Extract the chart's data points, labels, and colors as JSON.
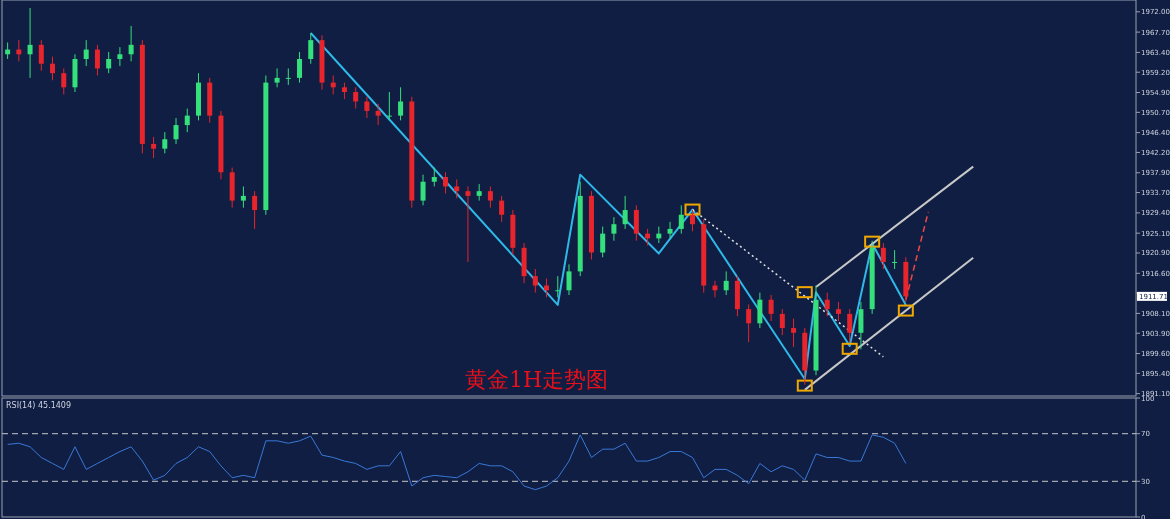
{
  "chart_data": [
    {
      "type": "candlestick",
      "tick_labels": "y",
      "annotations": [
        "黄金1H走势图",
        {
          "text": "1911.71",
          "y": 1911.71
        }
      ],
      "categories": [
        null,
        null,
        null,
        null,
        null,
        null,
        null,
        null,
        null,
        null,
        null,
        null,
        null,
        null,
        null,
        null,
        null,
        null,
        null,
        null,
        null,
        null,
        null,
        null,
        null,
        null,
        null,
        null,
        null,
        null,
        null,
        null,
        null,
        null,
        null,
        null,
        null,
        null,
        null,
        null,
        null,
        null,
        null,
        null,
        null,
        null,
        null,
        null,
        null,
        null,
        null,
        null,
        null,
        null,
        null,
        null,
        null,
        null,
        null,
        null,
        null,
        null,
        null,
        null,
        null,
        null,
        null,
        null,
        null,
        null,
        null,
        null,
        null,
        null,
        null,
        null,
        null,
        null,
        null,
        null,
        null,
        null,
        null,
        null,
        null,
        null,
        null,
        null,
        null,
        null,
        null,
        null,
        null,
        null,
        null,
        null,
        null,
        null,
        null,
        null,
        null
      ],
      "ohlc": [
        [
          1963,
          1965.5,
          1962,
          1964
        ],
        [
          1964,
          1966,
          1961.5,
          1963
        ],
        [
          1963,
          1972.8,
          1958,
          1965
        ],
        [
          1965,
          1966,
          1959.5,
          1961
        ],
        [
          1961,
          1962.5,
          1957.5,
          1959
        ],
        [
          1959,
          1960,
          1954.5,
          1956
        ],
        [
          1956,
          1963,
          1955,
          1962
        ],
        [
          1962,
          1966,
          1960.5,
          1964
        ],
        [
          1964,
          1965,
          1958.5,
          1960
        ],
        [
          1960,
          1963.5,
          1959,
          1962
        ],
        [
          1962,
          1964.5,
          1960.5,
          1963
        ],
        [
          1963,
          1969,
          1961.5,
          1965
        ],
        [
          1965,
          1966,
          1942,
          1944
        ],
        [
          1944,
          1945.5,
          1941,
          1943
        ],
        [
          1943,
          1946.5,
          1942,
          1945
        ],
        [
          1945,
          1949.5,
          1944,
          1948
        ],
        [
          1948,
          1951.5,
          1946.5,
          1950
        ],
        [
          1950,
          1959,
          1949,
          1957
        ],
        [
          1957,
          1958,
          1948.5,
          1950
        ],
        [
          1950,
          1951,
          1936.5,
          1938
        ],
        [
          1938,
          1939,
          1930.5,
          1932
        ],
        [
          1932,
          1935,
          1930.5,
          1933
        ],
        [
          1933,
          1934,
          1926,
          1930
        ],
        [
          1930,
          1958.5,
          1929,
          1957
        ],
        [
          1957,
          1960,
          1956,
          1958
        ],
        [
          1958,
          1960,
          1956.5,
          1958
        ],
        [
          1958,
          1963.5,
          1957,
          1962
        ],
        [
          1962,
          1967.5,
          1961,
          1966
        ],
        [
          1966,
          1967,
          1955.5,
          1957
        ],
        [
          1957,
          1958.5,
          1954.5,
          1956
        ],
        [
          1956,
          1957,
          1953.5,
          1955
        ],
        [
          1955,
          1956,
          1951.5,
          1953
        ],
        [
          1953,
          1954,
          1949.5,
          1951
        ],
        [
          1951,
          1952.5,
          1948,
          1950
        ],
        [
          1950,
          1955,
          1949,
          1950
        ],
        [
          1950,
          1956,
          1949,
          1953
        ],
        [
          1953,
          1954,
          1930.5,
          1932
        ],
        [
          1932,
          1937.5,
          1931,
          1936
        ],
        [
          1936,
          1939,
          1935,
          1937
        ],
        [
          1937,
          1938,
          1933.5,
          1935
        ],
        [
          1935,
          1936.5,
          1932.5,
          1934
        ],
        [
          1934,
          1935,
          1919,
          1933
        ],
        [
          1933,
          1935.5,
          1932,
          1934
        ],
        [
          1934,
          1935,
          1930.5,
          1932
        ],
        [
          1932,
          1933,
          1927.5,
          1929
        ],
        [
          1929,
          1930,
          1920.5,
          1922
        ],
        [
          1922,
          1923,
          1914.5,
          1916
        ],
        [
          1916,
          1917.5,
          1912.5,
          1914
        ],
        [
          1914,
          1915.5,
          1911.5,
          1913
        ],
        [
          1913,
          1916,
          1911.5,
          1913
        ],
        [
          1913,
          1918.5,
          1912,
          1917
        ],
        [
          1917,
          1936,
          1916,
          1933
        ],
        [
          1933,
          1934,
          1919.5,
          1921
        ],
        [
          1921,
          1926.5,
          1920,
          1925
        ],
        [
          1925,
          1928.5,
          1923.5,
          1927
        ],
        [
          1927,
          1933,
          1926,
          1930
        ],
        [
          1930,
          1931,
          1923.5,
          1925
        ],
        [
          1925,
          1926,
          1922.5,
          1924
        ],
        [
          1924,
          1926.5,
          1923,
          1925
        ],
        [
          1925,
          1927.5,
          1924,
          1926
        ],
        [
          1926,
          1931,
          1925,
          1929
        ],
        [
          1929,
          1930,
          1925.5,
          1927
        ],
        [
          1927,
          1928,
          1912.5,
          1914
        ],
        [
          1914,
          1915,
          1911.5,
          1913
        ],
        [
          1913,
          1917,
          1912,
          1915
        ],
        [
          1915,
          1916,
          1907.5,
          1909
        ],
        [
          1909,
          1910,
          1902,
          1906
        ],
        [
          1906,
          1912.5,
          1905,
          1911
        ],
        [
          1911,
          1912,
          1906.5,
          1908
        ],
        [
          1908,
          1909,
          1903.5,
          1905
        ],
        [
          1905,
          1907,
          1901,
          1904
        ],
        [
          1904,
          1905,
          1893,
          1896
        ],
        [
          1896,
          1914,
          1895,
          1911
        ],
        [
          1911,
          1912.5,
          1907.5,
          1909
        ],
        [
          1909,
          1910.5,
          1906.5,
          1908
        ],
        [
          1908,
          1909,
          1902,
          1904
        ],
        [
          1904,
          1910.5,
          1900.5,
          1909
        ],
        [
          1909,
          1923.5,
          1908,
          1922
        ],
        [
          1922,
          1923,
          1917.5,
          1919
        ],
        [
          1919,
          1921.5,
          1917.5,
          1919
        ],
        [
          1919,
          1920,
          1910.5,
          1911.71
        ],
        null,
        null,
        null,
        null,
        null,
        null,
        null,
        null,
        null,
        null,
        null,
        null,
        null,
        null,
        null,
        null,
        null,
        null,
        null,
        null
      ],
      "ylim": [
        1890.6,
        1974.5
      ],
      "yticks": [
        {
          "value": 1972,
          "label": "1972.00"
        },
        {
          "value": 1967.7,
          "label": "1967.70"
        },
        {
          "value": 1963.4,
          "label": "1963.40"
        },
        {
          "value": 1959.2,
          "label": "1959.20"
        },
        {
          "value": 1954.9,
          "label": "1954.90"
        },
        {
          "value": 1950.7,
          "label": "1950.70"
        },
        {
          "value": 1946.4,
          "label": "1946.40"
        },
        {
          "value": 1942.2,
          "label": "1942.20"
        },
        {
          "value": 1937.9,
          "label": "1937.90"
        },
        {
          "value": 1933.7,
          "label": "1933.70"
        },
        {
          "value": 1929.4,
          "label": "1929.40"
        },
        {
          "value": 1925.1,
          "label": "1925.10"
        },
        {
          "value": 1920.9,
          "label": "1920.90"
        },
        {
          "value": 1916.6,
          "label": "1916.60"
        },
        {
          "value": 1912.4,
          "label": null
        },
        {
          "value": 1908.1,
          "label": "1908.10"
        },
        {
          "value": 1903.9,
          "label": "1903.90"
        },
        {
          "value": 1899.6,
          "label": "1899.60"
        },
        {
          "value": 1895.4,
          "label": "1895.40"
        },
        {
          "value": 1891.1,
          "label": "1891.10"
        }
      ],
      "series": [
        {
          "type": "line",
          "color": "#2fb8e8",
          "values": [
            null,
            null,
            null,
            null,
            null,
            null,
            null,
            null,
            null,
            null,
            null,
            null,
            null,
            null,
            null,
            null,
            null,
            null,
            null,
            null,
            null,
            null,
            null,
            null,
            null,
            null,
            null,
            1967.5,
            null,
            null,
            null,
            null,
            null,
            null,
            null,
            null,
            null,
            null,
            null,
            null,
            null,
            null,
            null,
            null,
            null,
            null,
            null,
            null,
            null,
            1909.9,
            null,
            1937.5,
            null,
            null,
            null,
            null,
            null,
            null,
            1920.8,
            null,
            null,
            1930.1,
            null,
            null,
            null,
            null,
            null,
            null,
            null,
            null,
            null,
            1894.2,
            1912.6,
            null,
            null,
            1901.2,
            null,
            1922.9,
            null,
            null,
            1909.9,
            null,
            null,
            null,
            null,
            null,
            null,
            null,
            null,
            null,
            null,
            null,
            null,
            null,
            null,
            null,
            null,
            null,
            null,
            null,
            null
          ]
        },
        {
          "type": "line",
          "color": "#c8c8c8",
          "values": [
            null,
            null,
            null,
            null,
            null,
            null,
            null,
            null,
            null,
            null,
            null,
            null,
            null,
            null,
            null,
            null,
            null,
            null,
            null,
            null,
            null,
            null,
            null,
            null,
            null,
            null,
            null,
            null,
            null,
            null,
            null,
            null,
            null,
            null,
            null,
            null,
            null,
            null,
            null,
            null,
            null,
            null,
            null,
            null,
            null,
            null,
            null,
            null,
            null,
            null,
            null,
            null,
            null,
            null,
            null,
            null,
            null,
            null,
            null,
            null,
            null,
            null,
            null,
            null,
            null,
            null,
            null,
            null,
            null,
            null,
            null,
            null,
            1913.7,
            null,
            null,
            null,
            null,
            null,
            null,
            null,
            null,
            null,
            null,
            null,
            null,
            null,
            1939.2,
            null,
            null,
            null,
            null,
            null,
            null,
            null,
            null,
            null,
            null,
            null,
            null,
            null,
            null
          ]
        },
        {
          "type": "line",
          "color": "#c8c8c8",
          "values": [
            null,
            null,
            null,
            null,
            null,
            null,
            null,
            null,
            null,
            null,
            null,
            null,
            null,
            null,
            null,
            null,
            null,
            null,
            null,
            null,
            null,
            null,
            null,
            null,
            null,
            null,
            null,
            null,
            null,
            null,
            null,
            null,
            null,
            null,
            null,
            null,
            null,
            null,
            null,
            null,
            null,
            null,
            null,
            null,
            null,
            null,
            null,
            null,
            null,
            null,
            null,
            null,
            null,
            null,
            null,
            null,
            null,
            null,
            null,
            null,
            null,
            null,
            null,
            null,
            null,
            null,
            null,
            null,
            null,
            null,
            null,
            1891.9,
            null,
            null,
            null,
            null,
            null,
            null,
            null,
            null,
            null,
            null,
            null,
            null,
            null,
            null,
            1919.9,
            null,
            null,
            null,
            null,
            null,
            null,
            null,
            null,
            null,
            null,
            null,
            null,
            null,
            null
          ]
        },
        {
          "type": "line",
          "color": "#e0e0e0",
          "line_style": "dotted",
          "values": [
            null,
            null,
            null,
            null,
            null,
            null,
            null,
            null,
            null,
            null,
            null,
            null,
            null,
            null,
            null,
            null,
            null,
            null,
            null,
            null,
            null,
            null,
            null,
            null,
            null,
            null,
            null,
            null,
            null,
            null,
            null,
            null,
            null,
            null,
            null,
            null,
            null,
            null,
            null,
            null,
            null,
            null,
            null,
            null,
            null,
            null,
            null,
            null,
            null,
            null,
            null,
            null,
            null,
            null,
            null,
            null,
            null,
            null,
            null,
            null,
            null,
            1930.1,
            null,
            null,
            null,
            null,
            null,
            null,
            null,
            null,
            null,
            null,
            null,
            null,
            null,
            null,
            null,
            null,
            1898.9,
            null,
            null,
            null,
            null,
            null,
            null,
            null,
            null,
            null,
            null,
            null,
            null,
            null,
            null,
            null,
            null,
            null,
            null,
            null,
            null,
            null,
            null
          ]
        },
        {
          "type": "scatter",
          "color": "#f0a800",
          "marker": "square",
          "values": [
            null,
            null,
            null,
            null,
            null,
            null,
            null,
            null,
            null,
            null,
            null,
            null,
            null,
            null,
            null,
            null,
            null,
            null,
            null,
            null,
            null,
            null,
            null,
            null,
            null,
            null,
            null,
            null,
            null,
            null,
            null,
            null,
            null,
            null,
            null,
            null,
            null,
            null,
            null,
            null,
            null,
            null,
            null,
            null,
            null,
            null,
            null,
            null,
            null,
            null,
            null,
            null,
            null,
            null,
            null,
            null,
            null,
            null,
            null,
            null,
            null,
            1930.1,
            null,
            null,
            null,
            null,
            null,
            null,
            null,
            null,
            null,
            1912.6,
            null,
            null,
            null,
            null,
            null,
            1923.3,
            null,
            null,
            null,
            null,
            null,
            null,
            null,
            null,
            null,
            null,
            null,
            null,
            null,
            null,
            null,
            null,
            null,
            null,
            null,
            null,
            null,
            null,
            null
          ]
        },
        {
          "type": "scatter",
          "color": "#f0a800",
          "marker": "square",
          "values": [
            null,
            null,
            null,
            null,
            null,
            null,
            null,
            null,
            null,
            null,
            null,
            null,
            null,
            null,
            null,
            null,
            null,
            null,
            null,
            null,
            null,
            null,
            null,
            null,
            null,
            null,
            null,
            null,
            null,
            null,
            null,
            null,
            null,
            null,
            null,
            null,
            null,
            null,
            null,
            null,
            null,
            null,
            null,
            null,
            null,
            null,
            null,
            null,
            null,
            null,
            null,
            null,
            null,
            null,
            null,
            null,
            null,
            null,
            null,
            null,
            null,
            null,
            null,
            null,
            null,
            null,
            null,
            null,
            null,
            null,
            null,
            1892.8,
            null,
            null,
            null,
            1900.6,
            null,
            null,
            null,
            null,
            1908.7,
            null,
            null,
            null,
            null,
            null,
            null,
            null,
            null,
            null,
            null,
            null,
            null,
            null,
            null,
            null,
            null,
            null,
            null,
            null,
            null
          ]
        },
        {
          "type": "line",
          "color": "#f04848",
          "line_style": "dashed",
          "values": [
            null,
            null,
            null,
            null,
            null,
            null,
            null,
            null,
            null,
            null,
            null,
            null,
            null,
            null,
            null,
            null,
            null,
            null,
            null,
            null,
            null,
            null,
            null,
            null,
            null,
            null,
            null,
            null,
            null,
            null,
            null,
            null,
            null,
            null,
            null,
            null,
            null,
            null,
            null,
            null,
            null,
            null,
            null,
            null,
            null,
            null,
            null,
            null,
            null,
            null,
            null,
            null,
            null,
            null,
            null,
            null,
            null,
            null,
            null,
            null,
            null,
            null,
            null,
            null,
            null,
            null,
            null,
            null,
            null,
            null,
            null,
            null,
            null,
            null,
            null,
            null,
            null,
            null,
            null,
            null,
            1911,
            null,
            1929.6,
            null,
            null,
            null,
            null,
            null,
            null,
            null,
            null,
            null,
            null,
            null,
            null,
            null,
            null,
            null,
            null,
            null,
            null
          ]
        }
      ]
    },
    {
      "type": "line",
      "title": "RSI(14) 45.1409",
      "tick_labels": "y",
      "color": "#3a78d8",
      "categories": [
        null,
        null,
        null,
        null,
        null,
        null,
        null,
        null,
        null,
        null,
        null,
        null,
        null,
        null,
        null,
        null,
        null,
        null,
        null,
        null,
        null,
        null,
        null,
        null,
        null,
        null,
        null,
        null,
        null,
        null,
        null,
        null,
        null,
        null,
        null,
        null,
        null,
        null,
        null,
        null,
        null,
        null,
        null,
        null,
        null,
        null,
        null,
        null,
        null,
        null,
        null,
        null,
        null,
        null,
        null,
        null,
        null,
        null,
        null,
        null,
        null,
        null,
        null,
        null,
        null,
        null,
        null,
        null,
        null,
        null,
        null,
        null,
        null,
        null,
        null,
        null,
        null,
        null,
        null,
        null,
        null,
        null,
        null,
        null,
        null,
        null,
        null,
        null,
        null,
        null,
        null,
        null,
        null,
        null,
        null,
        null,
        null,
        null,
        null,
        null,
        null
      ],
      "values": [
        61,
        62,
        59,
        50,
        45,
        40,
        59,
        40,
        45,
        50,
        55,
        59,
        47,
        31,
        35,
        45,
        50,
        59,
        55,
        43,
        33,
        35,
        33,
        64,
        64,
        62,
        64,
        68,
        52,
        50,
        47,
        45,
        40,
        43,
        43,
        55,
        26,
        33,
        35,
        34,
        33,
        38,
        45,
        43,
        43,
        38,
        26,
        23,
        26,
        33,
        47,
        69,
        50,
        57,
        57,
        62,
        47,
        47,
        50,
        55,
        55,
        50,
        33,
        40,
        40,
        35,
        28,
        45,
        38,
        43,
        40,
        31,
        53,
        50,
        50,
        47,
        47,
        69,
        67,
        62,
        45,
        null,
        null,
        null,
        null,
        null,
        null,
        null,
        null,
        null,
        null,
        null,
        null,
        null,
        null,
        null,
        null,
        null,
        null,
        null,
        null
      ],
      "ylim": [
        0,
        100
      ],
      "yticks": [
        0,
        30,
        70,
        100
      ],
      "ref_lines": [
        {
          "axis": "y",
          "value": 70,
          "line_style": "dashed",
          "color": "#c8c8c8"
        },
        {
          "axis": "y",
          "value": 30,
          "line_style": "dashed",
          "color": "#c8c8c8"
        }
      ]
    }
  ]
}
